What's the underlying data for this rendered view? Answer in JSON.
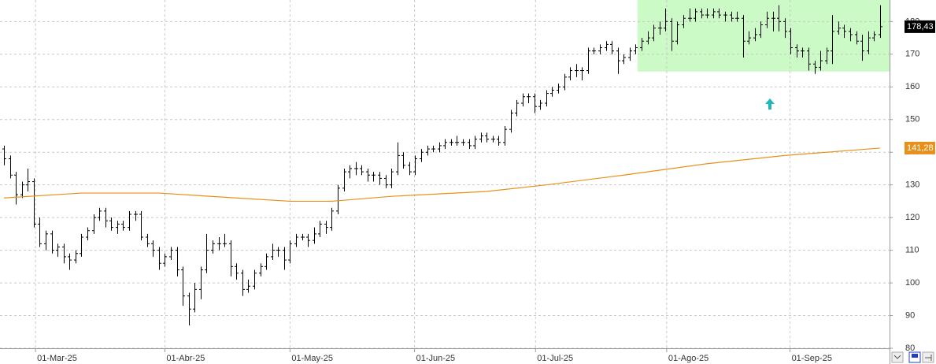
{
  "chart_data": {
    "type": "ohlc",
    "bar_color": "#000000",
    "bars": [
      [
        141,
        142,
        136,
        138
      ],
      [
        138,
        139,
        132,
        133
      ],
      [
        133,
        134,
        124,
        127
      ],
      [
        127,
        131,
        126,
        130
      ],
      [
        130,
        135,
        128,
        131
      ],
      [
        131,
        132,
        117,
        118
      ],
      [
        118,
        120,
        111,
        112
      ],
      [
        112,
        116,
        110,
        115
      ],
      [
        115,
        116,
        109,
        110
      ],
      [
        110,
        112,
        108,
        111
      ],
      [
        111,
        112,
        106,
        108
      ],
      [
        108,
        109,
        104,
        107
      ],
      [
        107,
        110,
        106,
        109
      ],
      [
        109,
        115,
        108,
        114
      ],
      [
        114,
        117,
        113,
        116
      ],
      [
        116,
        121,
        115,
        120
      ],
      [
        120,
        123,
        119,
        122
      ],
      [
        122,
        123,
        117,
        119
      ],
      [
        119,
        120,
        116,
        117
      ],
      [
        117,
        119,
        115,
        118
      ],
      [
        118,
        119,
        116,
        117
      ],
      [
        117,
        122,
        116,
        121
      ],
      [
        121,
        122,
        119,
        121
      ],
      [
        121,
        122,
        113,
        114
      ],
      [
        114,
        115,
        111,
        112
      ],
      [
        112,
        113,
        108,
        110
      ],
      [
        110,
        111,
        104,
        106
      ],
      [
        106,
        109,
        105,
        108
      ],
      [
        108,
        111,
        107,
        110
      ],
      [
        110,
        111,
        102,
        104
      ],
      [
        104,
        105,
        93,
        96
      ],
      [
        96,
        97,
        87,
        92
      ],
      [
        92,
        100,
        91,
        98
      ],
      [
        98,
        105,
        95,
        104
      ],
      [
        104,
        115,
        103,
        110
      ],
      [
        110,
        113,
        109,
        112
      ],
      [
        112,
        114,
        110,
        112
      ],
      [
        112,
        115,
        111,
        112
      ],
      [
        112,
        113,
        102,
        105
      ],
      [
        105,
        106,
        101,
        103
      ],
      [
        103,
        104,
        96,
        98
      ],
      [
        98,
        101,
        97,
        99
      ],
      [
        99,
        104,
        98,
        103
      ],
      [
        103,
        106,
        102,
        105
      ],
      [
        105,
        109,
        104,
        108
      ],
      [
        108,
        112,
        107,
        110
      ],
      [
        110,
        111,
        108,
        110
      ],
      [
        110,
        111,
        104,
        107
      ],
      [
        107,
        113,
        106,
        112
      ],
      [
        112,
        115,
        111,
        114
      ],
      [
        114,
        115,
        113,
        114
      ],
      [
        114,
        115,
        111,
        113
      ],
      [
        113,
        117,
        112,
        115
      ],
      [
        115,
        119,
        114,
        118
      ],
      [
        118,
        119,
        115,
        117
      ],
      [
        117,
        123,
        116,
        122
      ],
      [
        122,
        130,
        121,
        129
      ],
      [
        129,
        135,
        128,
        134
      ],
      [
        134,
        136,
        132,
        135
      ],
      [
        135,
        137,
        133,
        135
      ],
      [
        135,
        136,
        133,
        134
      ],
      [
        134,
        135,
        131,
        133
      ],
      [
        133,
        134,
        131,
        133
      ],
      [
        133,
        134,
        130,
        132
      ],
      [
        132,
        133,
        129,
        130
      ],
      [
        130,
        135,
        129,
        134
      ],
      [
        134,
        143,
        133,
        139
      ],
      [
        139,
        140,
        135,
        136
      ],
      [
        136,
        137,
        133,
        134
      ],
      [
        134,
        139,
        133,
        138
      ],
      [
        138,
        141,
        137,
        140
      ],
      [
        140,
        142,
        139,
        141
      ],
      [
        141,
        142,
        140,
        141
      ],
      [
        141,
        143,
        140,
        142
      ],
      [
        142,
        144,
        141,
        143
      ],
      [
        143,
        144,
        142,
        143
      ],
      [
        143,
        145,
        142,
        143
      ],
      [
        143,
        144,
        142,
        143
      ],
      [
        143,
        144,
        141,
        142
      ],
      [
        142,
        145,
        141,
        144
      ],
      [
        144,
        146,
        143,
        145
      ],
      [
        145,
        146,
        143,
        144
      ],
      [
        144,
        145,
        143,
        144
      ],
      [
        144,
        145,
        142,
        143
      ],
      [
        143,
        148,
        142,
        147
      ],
      [
        147,
        153,
        146,
        152
      ],
      [
        152,
        156,
        151,
        155
      ],
      [
        155,
        158,
        154,
        157
      ],
      [
        157,
        158,
        155,
        157
      ],
      [
        157,
        158,
        152,
        154
      ],
      [
        154,
        156,
        153,
        155
      ],
      [
        155,
        159,
        154,
        158
      ],
      [
        158,
        160,
        157,
        159
      ],
      [
        159,
        161,
        158,
        160
      ],
      [
        160,
        164,
        159,
        163
      ],
      [
        163,
        166,
        162,
        165
      ],
      [
        165,
        167,
        163,
        165
      ],
      [
        165,
        166,
        162,
        165
      ],
      [
        165,
        172,
        164,
        171
      ],
      [
        171,
        172,
        170,
        171
      ],
      [
        171,
        173,
        170,
        172
      ],
      [
        172,
        174,
        171,
        173
      ],
      [
        173,
        174,
        170,
        171
      ],
      [
        171,
        172,
        164,
        168
      ],
      [
        168,
        170,
        167,
        169
      ],
      [
        169,
        172,
        168,
        171
      ],
      [
        171,
        173,
        170,
        172
      ],
      [
        172,
        175,
        171,
        174
      ],
      [
        174,
        177,
        173,
        175
      ],
      [
        175,
        179,
        174,
        178
      ],
      [
        178,
        180,
        176,
        178
      ],
      [
        178,
        184,
        177,
        180
      ],
      [
        180,
        181,
        171,
        174
      ],
      [
        174,
        180,
        173,
        179
      ],
      [
        179,
        182,
        178,
        181
      ],
      [
        181,
        184,
        180,
        181
      ],
      [
        181,
        184,
        180,
        183
      ],
      [
        183,
        184,
        181,
        182
      ],
      [
        182,
        184,
        181,
        182
      ],
      [
        182,
        184,
        181,
        183
      ],
      [
        183,
        184,
        181,
        182
      ],
      [
        182,
        183,
        180,
        182
      ],
      [
        182,
        183,
        180,
        181
      ],
      [
        181,
        183,
        180,
        181
      ],
      [
        181,
        182,
        169,
        174
      ],
      [
        174,
        177,
        173,
        175
      ],
      [
        175,
        178,
        174,
        176
      ],
      [
        176,
        180,
        175,
        179
      ],
      [
        179,
        183,
        178,
        181
      ],
      [
        181,
        183,
        177,
        181
      ],
      [
        181,
        185,
        177,
        180
      ],
      [
        180,
        181,
        175,
        177
      ],
      [
        177,
        178,
        170,
        172
      ],
      [
        172,
        173,
        169,
        171
      ],
      [
        171,
        172,
        169,
        171
      ],
      [
        171,
        172,
        165,
        167
      ],
      [
        167,
        168,
        164,
        166
      ],
      [
        166,
        171,
        165,
        168
      ],
      [
        168,
        172,
        167,
        171
      ],
      [
        171,
        182,
        167,
        177
      ],
      [
        177,
        180,
        176,
        178
      ],
      [
        178,
        179,
        175,
        177
      ],
      [
        177,
        178,
        174,
        176
      ],
      [
        176,
        177,
        173,
        174
      ],
      [
        174,
        176,
        168,
        171
      ],
      [
        171,
        177,
        170,
        175
      ],
      [
        175,
        177,
        174,
        176
      ],
      [
        176,
        185,
        175,
        178.43
      ]
    ],
    "last_label": "178,43",
    "moving_average": {
      "color": "#e8901c",
      "x": [
        0,
        13,
        26,
        39,
        48,
        55,
        65,
        81,
        91,
        104,
        118,
        131,
        147
      ],
      "values": [
        126,
        127.5,
        127.5,
        126,
        125,
        125,
        126.5,
        128,
        130,
        133,
        136.5,
        139,
        141.28
      ],
      "last_label": "141,28"
    },
    "highlight": {
      "color": "#ccfac6",
      "x": [
        106.3,
        148.6
      ],
      "y": [
        164.7,
        186.6
      ]
    },
    "xlim": [
      -0.66,
      148.6
    ],
    "ylim": [
      80,
      186.6
    ],
    "yticks": [
      80,
      90,
      100,
      110,
      120,
      130,
      140,
      150,
      160,
      170,
      180
    ],
    "xticks": [
      {
        "value": 5.3,
        "label": "01-Mar-25"
      },
      {
        "value": 27,
        "label": "01-Abr-25"
      },
      {
        "value": 48,
        "label": "01-May-25"
      },
      {
        "value": 68.9,
        "label": "01-Jun-25"
      },
      {
        "value": 89.2,
        "label": "01-Jul-25"
      },
      {
        "value": 111.2,
        "label": "01-Ago-25"
      },
      {
        "value": 131.9,
        "label": "01-Sep-25"
      }
    ],
    "grid": true
  }
}
